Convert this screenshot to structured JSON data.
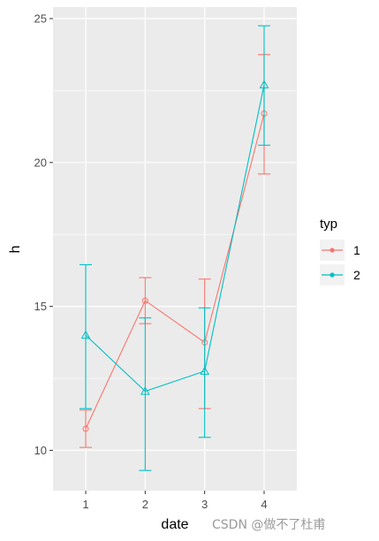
{
  "chart_data": {
    "type": "line",
    "xlabel": "date",
    "ylabel": "h",
    "x": [
      1,
      2,
      3,
      4
    ],
    "x_tick_labels": [
      "1",
      "2",
      "3",
      "4"
    ],
    "xlim": [
      0.45,
      4.55
    ],
    "ylim": [
      8.6,
      25.4
    ],
    "y_ticks": [
      10,
      15,
      20,
      25
    ],
    "y_tick_labels": [
      "10",
      "15",
      "20",
      "25"
    ],
    "grid": true,
    "background": "#ebebeb",
    "legend": {
      "title": "typ",
      "position": "right"
    },
    "series": [
      {
        "name": "1",
        "color": "#F8766D",
        "marker": "circle",
        "values": [
          10.75,
          15.2,
          13.75,
          21.7
        ],
        "error_low": [
          10.1,
          14.4,
          11.45,
          19.6
        ],
        "error_high": [
          11.4,
          16.0,
          15.95,
          23.75
        ]
      },
      {
        "name": "2",
        "color": "#00BFC4",
        "marker": "triangle",
        "values": [
          14.0,
          12.05,
          12.75,
          22.7
        ],
        "error_low": [
          11.45,
          9.3,
          10.45,
          20.6
        ],
        "error_high": [
          16.45,
          14.6,
          14.95,
          24.75
        ]
      }
    ]
  },
  "watermark": "CSDN @做不了杜甫"
}
